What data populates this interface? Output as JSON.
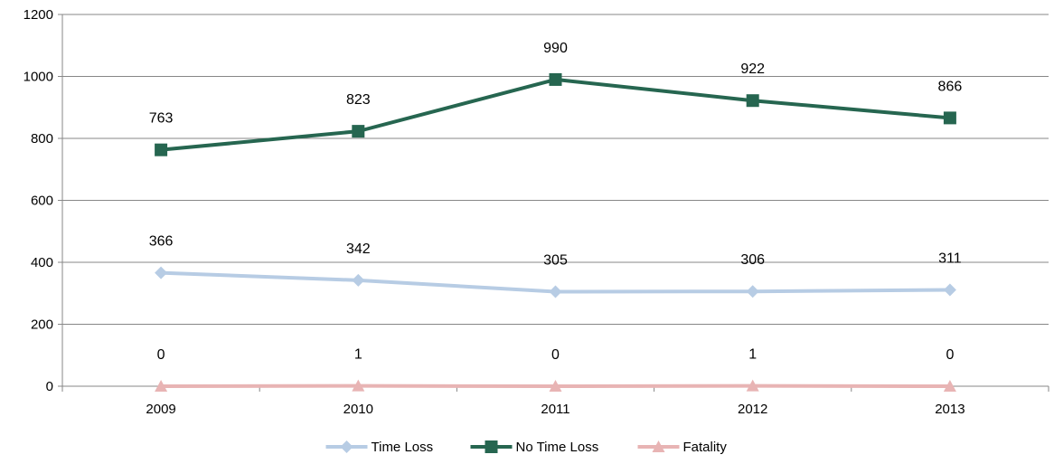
{
  "chart_data": {
    "type": "line",
    "title": "",
    "xlabel": "",
    "ylabel": "",
    "categories": [
      "2009",
      "2010",
      "2011",
      "2012",
      "2013"
    ],
    "ylim": [
      0,
      1200
    ],
    "y_ticks": [
      0,
      200,
      400,
      600,
      800,
      1000,
      1200
    ],
    "grid": "horizontal",
    "legend_position": "bottom",
    "series": [
      {
        "name": "Time Loss",
        "values": [
          366,
          342,
          305,
          306,
          311
        ],
        "color": "#b7cce4",
        "marker": "diamond"
      },
      {
        "name": "No Time Loss",
        "values": [
          763,
          823,
          990,
          922,
          866
        ],
        "color": "#266650",
        "marker": "square"
      },
      {
        "name": "Fatality",
        "values": [
          0,
          1,
          0,
          1,
          0
        ],
        "color": "#e8b4b4",
        "marker": "triangle"
      }
    ]
  }
}
